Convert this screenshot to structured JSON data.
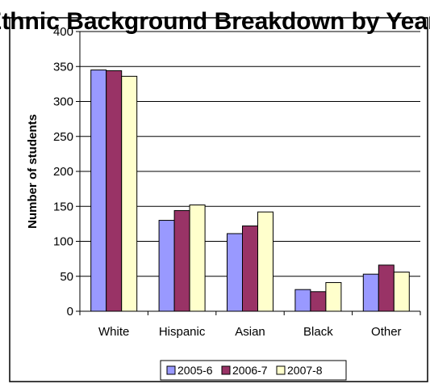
{
  "chart_data": {
    "type": "bar",
    "title": "Ethnic Background Breakdown by Year",
    "ylabel": "Number of students",
    "xlabel": "",
    "ylim": [
      0,
      400
    ],
    "yticks": [
      0,
      50,
      100,
      150,
      200,
      250,
      300,
      350,
      400
    ],
    "grid": true,
    "legend_position": "bottom",
    "categories": [
      "White",
      "Hispanic",
      "Asian",
      "Black",
      "Other"
    ],
    "series": [
      {
        "name": "2005-6",
        "color": "#9999ff",
        "values": [
          345,
          130,
          111,
          31,
          53
        ]
      },
      {
        "name": "2006-7",
        "color": "#993366",
        "values": [
          344,
          144,
          122,
          28,
          66
        ]
      },
      {
        "name": "2007-8",
        "color": "#ffffcc",
        "values": [
          336,
          152,
          142,
          41,
          56
        ]
      }
    ]
  }
}
